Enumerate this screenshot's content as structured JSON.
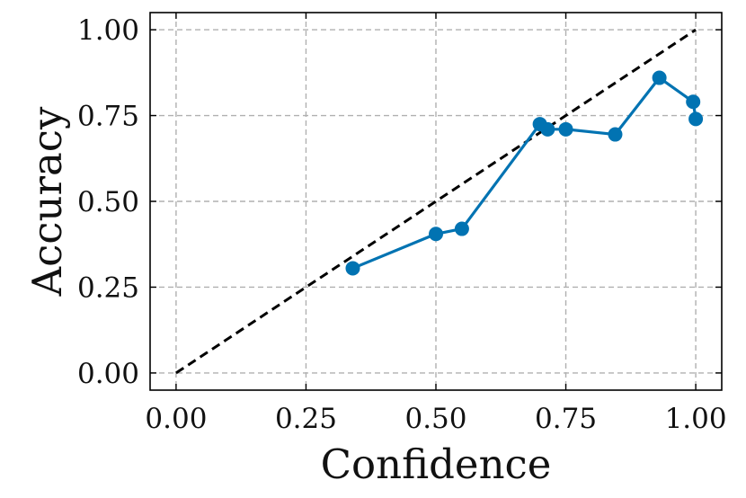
{
  "chart_data": {
    "type": "line",
    "title": "",
    "xlabel": "Confidence",
    "ylabel": "Accuracy",
    "xlim": [
      -0.05,
      1.05
    ],
    "ylim": [
      -0.05,
      1.05
    ],
    "xticks": [
      0.0,
      0.25,
      0.5,
      0.75,
      1.0
    ],
    "xtick_labels": [
      "0.00",
      "0.25",
      "0.50",
      "0.75",
      "1.00"
    ],
    "yticks": [
      0.0,
      0.25,
      0.5,
      0.75,
      1.0
    ],
    "ytick_labels": [
      "0.00",
      "0.25",
      "0.50",
      "0.75",
      "1.00"
    ],
    "grid": true,
    "legend": "none",
    "series": [
      {
        "style": "solid line with circle markers",
        "color": "#0173b2",
        "x": [
          0.34,
          0.5,
          0.55,
          0.7,
          0.715,
          0.75,
          0.845,
          0.93,
          0.995,
          1.0
        ],
        "y": [
          0.305,
          0.405,
          0.42,
          0.725,
          0.71,
          0.71,
          0.695,
          0.86,
          0.79,
          0.74
        ]
      },
      {
        "style": "dashed diagonal reference",
        "color": "#000000",
        "x": [
          0.0,
          1.0
        ],
        "y": [
          0.0,
          1.0
        ]
      }
    ],
    "colors": {
      "grid": "#b0b0b0",
      "frame": "#000000"
    }
  }
}
